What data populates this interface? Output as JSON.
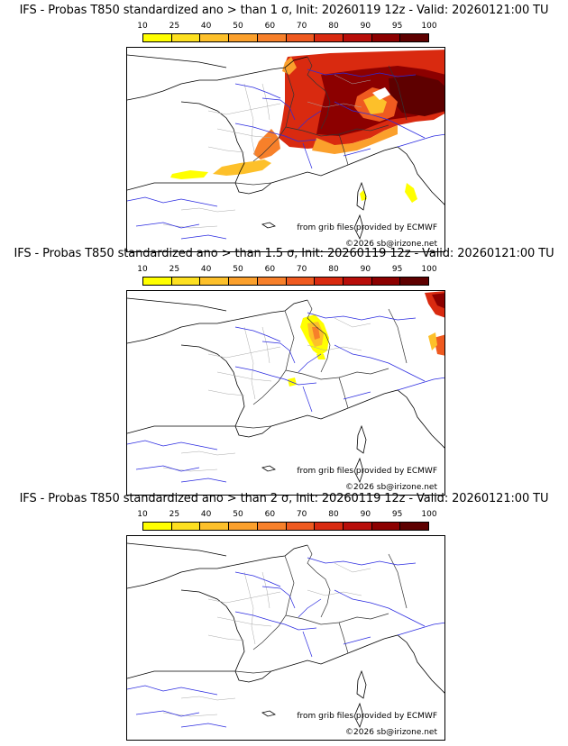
{
  "panels": [
    {
      "title": "IFS - Probas T850  standardized ano > than 1 σ, Init: 20260119 12z - Valid: 20260121:00 TU",
      "source_credit": "from grib files provided by ECMWF",
      "copyright": "©2026 sb@irizone.net"
    },
    {
      "title": "IFS - Probas T850  standardized ano > than 1.5 σ, Init: 20260119 12z - Valid: 20260121:00 TU",
      "source_credit": "from grib files provided by ECMWF",
      "copyright": "©2026 sb@irizone.net"
    },
    {
      "title": "IFS - Probas T850  standardized ano > than 2 σ, Init: 20260119 12z - Valid: 20260121:00 TU",
      "source_credit": "from grib files provided by ECMWF",
      "copyright": "©2026 sb@irizone.net"
    }
  ],
  "colorbar": {
    "ticks": [
      "10",
      "25",
      "40",
      "50",
      "60",
      "70",
      "80",
      "90",
      "95",
      "100"
    ],
    "colors": [
      "#ffff00",
      "#fde020",
      "#fdc02a",
      "#fba02c",
      "#f7802a",
      "#ef5a20",
      "#d92a10",
      "#b80e0a",
      "#8c0000",
      "#5e0000"
    ]
  }
}
